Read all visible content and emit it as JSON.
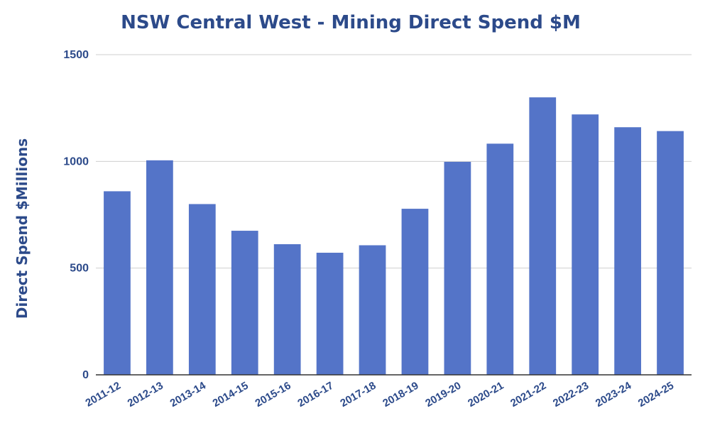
{
  "chart_data": {
    "type": "bar",
    "title": "NSW Central West - Mining Direct Spend $M",
    "xlabel": "",
    "ylabel": "Direct Spend $Millions",
    "categories": [
      "2011-12",
      "2012-13",
      "2013-14",
      "2014-15",
      "2015-16",
      "2016-17",
      "2017-18",
      "2018-19",
      "2019-20",
      "2020-21",
      "2021-22",
      "2022-23",
      "2023-24",
      "2024-25"
    ],
    "values": [
      860,
      1005,
      800,
      675,
      612,
      572,
      607,
      778,
      998,
      1083,
      1300,
      1220,
      1160,
      1142
    ],
    "ylim": [
      0,
      1500
    ],
    "yticks": [
      "0",
      "500",
      "1000",
      "1500"
    ],
    "grid": true,
    "legend": "none",
    "colors": {
      "bar": "#5474c8",
      "text": "#2c4a8a",
      "grid": "#cfcfcf"
    }
  }
}
